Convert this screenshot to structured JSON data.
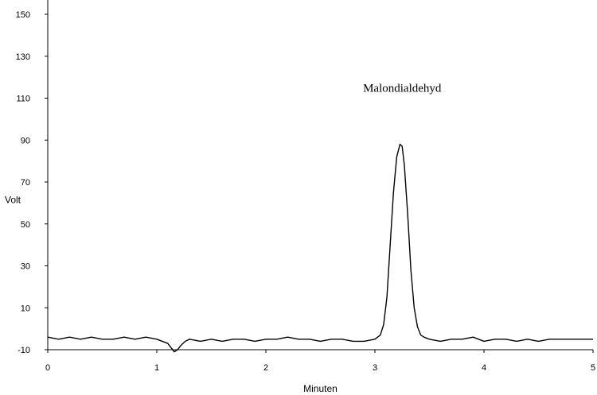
{
  "chart_data": {
    "type": "line",
    "title": "",
    "xlabel": "Minuten",
    "ylabel": "Volt",
    "xlim": [
      0,
      5
    ],
    "ylim": [
      -10,
      150
    ],
    "x_ticks": [
      0,
      1,
      2,
      3,
      4,
      5
    ],
    "y_ticks": [
      -10,
      10,
      30,
      50,
      70,
      90,
      110,
      130,
      150
    ],
    "grid": false,
    "annotations": [
      {
        "text": "Malondialdehyd",
        "x": 3.25,
        "y": 113
      }
    ],
    "series": [
      {
        "color": "#000000",
        "x": [
          0.0,
          0.1,
          0.2,
          0.3,
          0.4,
          0.5,
          0.6,
          0.7,
          0.8,
          0.9,
          1.0,
          1.05,
          1.1,
          1.13,
          1.16,
          1.19,
          1.22,
          1.26,
          1.3,
          1.4,
          1.5,
          1.6,
          1.7,
          1.8,
          1.9,
          2.0,
          2.1,
          2.2,
          2.3,
          2.4,
          2.5,
          2.6,
          2.7,
          2.8,
          2.9,
          3.0,
          3.05,
          3.08,
          3.11,
          3.14,
          3.17,
          3.2,
          3.23,
          3.25,
          3.27,
          3.3,
          3.33,
          3.36,
          3.39,
          3.42,
          3.45,
          3.5,
          3.6,
          3.7,
          3.8,
          3.9,
          4.0,
          4.1,
          4.2,
          4.3,
          4.4,
          4.5,
          4.6,
          4.7,
          4.8,
          4.9,
          5.0
        ],
        "y": [
          -4,
          -5,
          -4,
          -5,
          -4,
          -5,
          -5,
          -4,
          -5,
          -4,
          -5,
          -6,
          -7,
          -9,
          -11,
          -10,
          -8,
          -6,
          -5,
          -6,
          -5,
          -6,
          -5,
          -5,
          -6,
          -5,
          -5,
          -4,
          -5,
          -5,
          -6,
          -5,
          -5,
          -6,
          -6,
          -5,
          -3,
          2,
          15,
          40,
          65,
          82,
          88,
          87,
          78,
          55,
          28,
          10,
          1,
          -3,
          -4,
          -5,
          -6,
          -5,
          -5,
          -4,
          -6,
          -5,
          -5,
          -6,
          -5,
          -6,
          -5,
          -5,
          -5,
          -5,
          -5
        ]
      }
    ]
  }
}
